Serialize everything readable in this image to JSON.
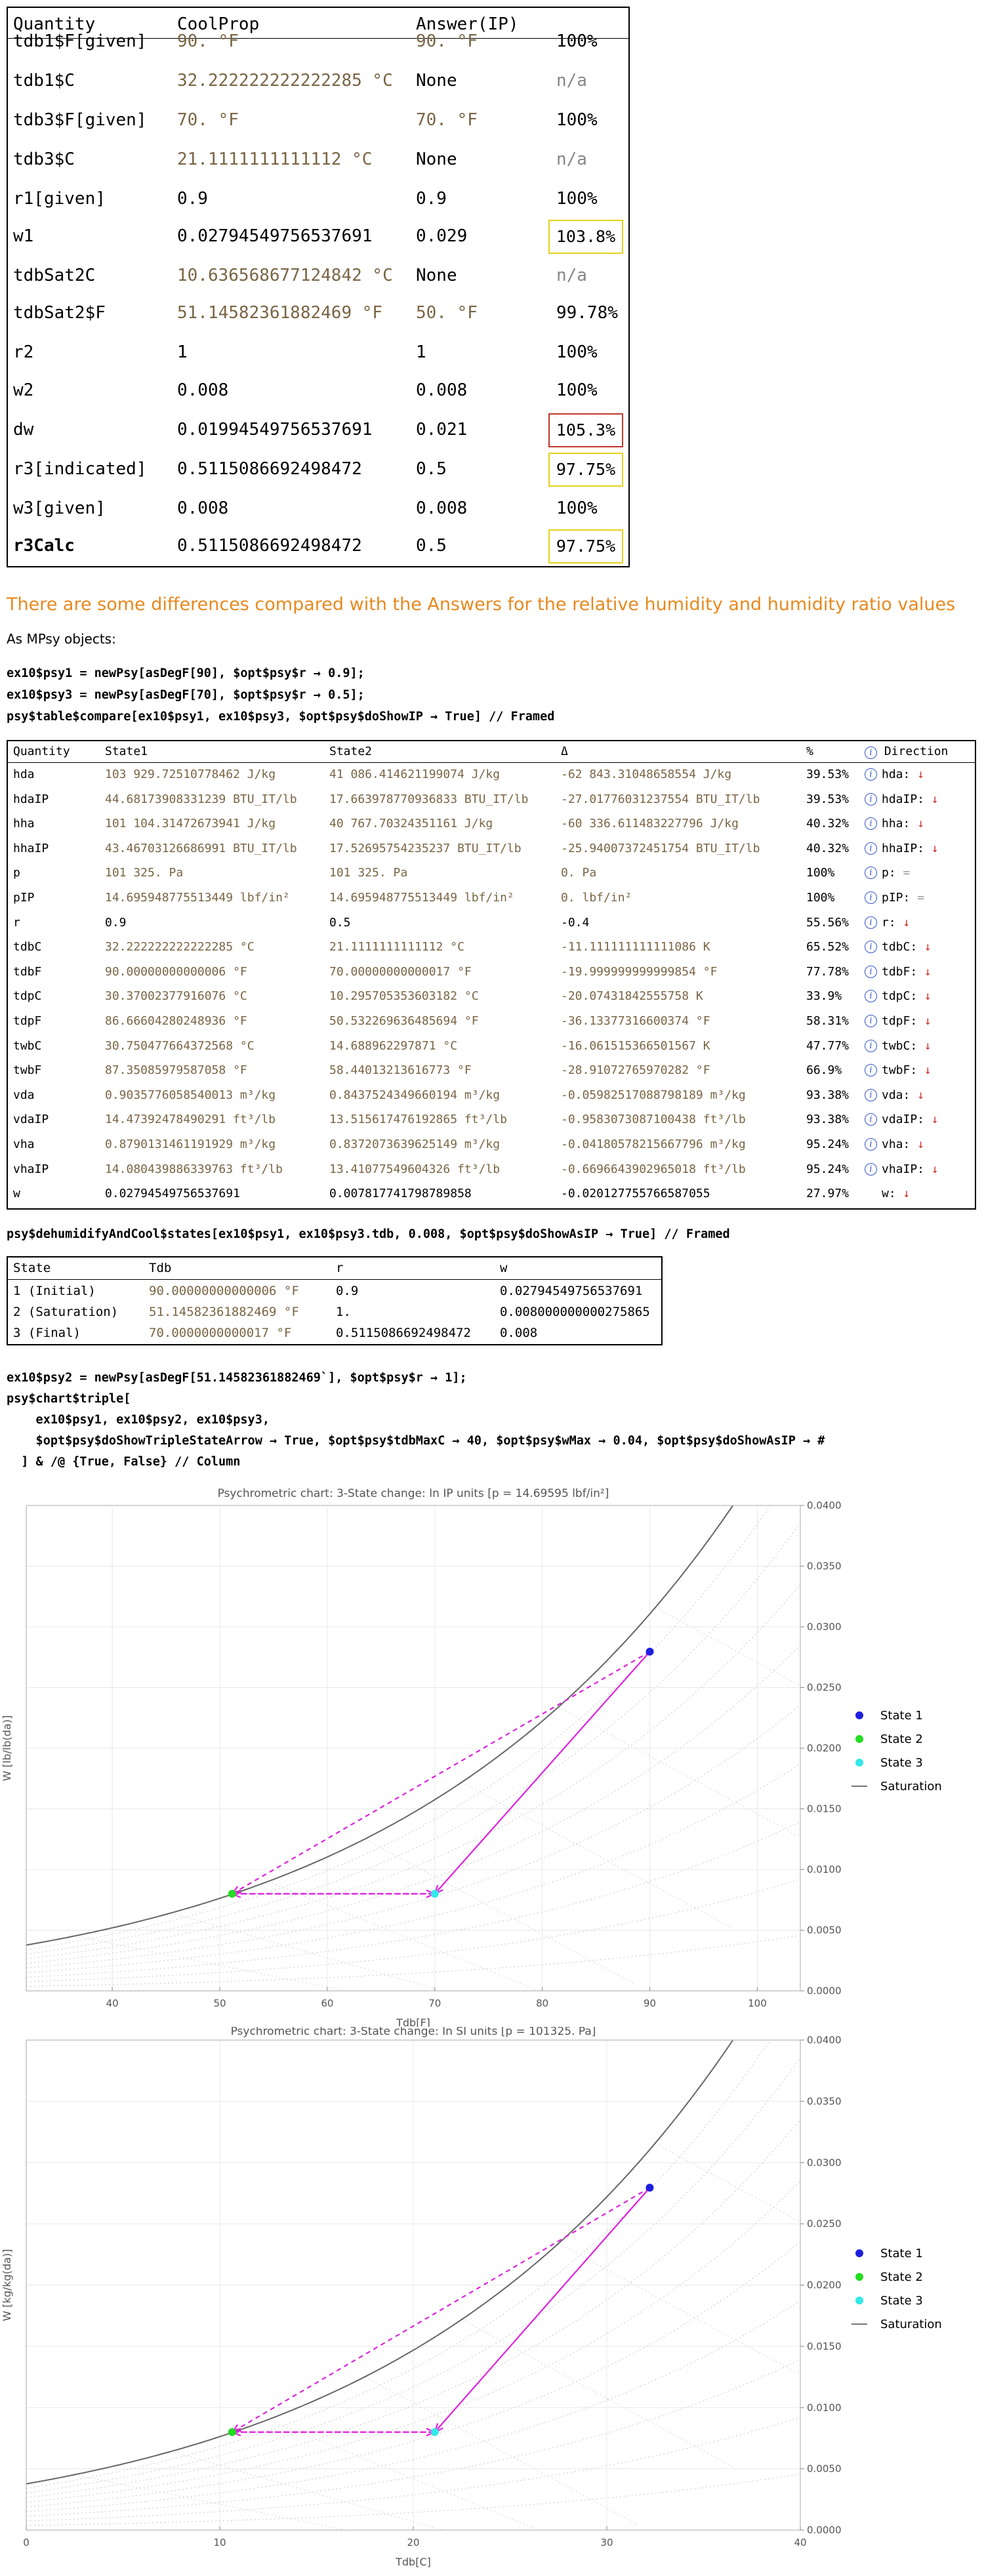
{
  "table1": {
    "headers": [
      "Quantity",
      "CoolProp",
      "Answer(IP)"
    ],
    "rows": [
      {
        "q": "tdb1$F[given]",
        "cp": "90. °F",
        "ans": "90. °F",
        "pct": "100%",
        "cp_style": "brown",
        "ans_style": "brown",
        "box": ""
      },
      {
        "q": "tdb1$C",
        "cp": "32.222222222222285 °C",
        "ans": "None",
        "pct": "n/a",
        "cp_style": "brown",
        "ans_style": "",
        "box": ""
      },
      {
        "q": "tdb3$F[given]",
        "cp": "70. °F",
        "ans": "70. °F",
        "pct": "100%",
        "cp_style": "brown",
        "ans_style": "brown",
        "box": ""
      },
      {
        "q": "tdb3$C",
        "cp": "21.1111111111112 °C",
        "ans": "None",
        "pct": "n/a",
        "cp_style": "brown",
        "ans_style": "",
        "box": ""
      },
      {
        "q": "r1[given]",
        "cp": "0.9",
        "ans": "0.9",
        "pct": "100%",
        "cp_style": "",
        "ans_style": "",
        "box": ""
      },
      {
        "q": "w1",
        "cp": "0.02794549756537691",
        "ans": "0.029",
        "pct": "103.8%",
        "cp_style": "",
        "ans_style": "",
        "box": "yellow"
      },
      {
        "q": "tdbSat2C",
        "cp": "10.636568677124842 °C",
        "ans": "None",
        "pct": "n/a",
        "cp_style": "brown",
        "ans_style": "",
        "box": ""
      },
      {
        "q": "tdbSat2$F",
        "cp": "51.14582361882469 °F",
        "ans": "50. °F",
        "pct": "99.78%",
        "cp_style": "brown",
        "ans_style": "brown",
        "box": ""
      },
      {
        "q": "r2",
        "cp": "1",
        "ans": "1",
        "pct": "100%",
        "cp_style": "",
        "ans_style": "",
        "box": ""
      },
      {
        "q": "w2",
        "cp": "0.008",
        "ans": "0.008",
        "pct": "100%",
        "cp_style": "",
        "ans_style": "",
        "box": ""
      },
      {
        "q": "dw",
        "cp": "0.01994549756537691",
        "ans": "0.021",
        "pct": "105.3%",
        "cp_style": "",
        "ans_style": "",
        "box": "red"
      },
      {
        "q": "r3[indicated]",
        "cp": "0.5115086692498472",
        "ans": "0.5",
        "pct": "97.75%",
        "cp_style": "",
        "ans_style": "",
        "box": "yellow"
      },
      {
        "q": "w3[given]",
        "cp": "0.008",
        "ans": "0.008",
        "pct": "100%",
        "cp_style": "",
        "ans_style": "",
        "box": ""
      },
      {
        "q": "r3Calc",
        "cp": "0.5115086692498472",
        "ans": "0.5",
        "pct": "97.75%",
        "cp_style": "",
        "ans_style": "",
        "box": "yellow",
        "bold": true
      }
    ]
  },
  "heading": "There are some differences compared with the Answers for the relative humidity and humidity ratio values",
  "mpsy_label": "As MPsy objects:",
  "code1": [
    "ex10$psy1 = newPsy[asDegF[90], $opt$psy$r → 0.9];",
    "ex10$psy3 = newPsy[asDegF[70], $opt$psy$r → 0.5];",
    "psy$table$compare[ex10$psy1, ex10$psy3, $opt$psy$doShowIP → True] // Framed"
  ],
  "table2": {
    "headers": [
      "Quantity",
      "State1",
      "State2",
      "Δ",
      "%",
      "Direction"
    ],
    "rows": [
      {
        "q": "hda",
        "s1": "103 929.72510778462 J/kg",
        "s2": "41 086.414621199074 J/kg",
        "d": "-62 843.31048658554 J/kg",
        "p": "39.53%",
        "dir": "hda:",
        "arrow": "↓",
        "ac": "dn",
        "unit": true
      },
      {
        "q": "hdaIP",
        "s1": "44.68173908331239 BTU_IT/lb",
        "s2": "17.663978770936833 BTU_IT/lb",
        "d": "-27.01776031237554 BTU_IT/lb",
        "p": "39.53%",
        "dir": "hdaIP:",
        "arrow": "↓",
        "ac": "dn",
        "unit": true
      },
      {
        "q": "hha",
        "s1": "101 104.31472673941 J/kg",
        "s2": "40 767.70324351161 J/kg",
        "d": "-60 336.611483227796 J/kg",
        "p": "40.32%",
        "dir": "hha:",
        "arrow": "↓",
        "ac": "dn",
        "unit": true
      },
      {
        "q": "hhaIP",
        "s1": "43.46703126686991 BTU_IT/lb",
        "s2": "17.52695754235237 BTU_IT/lb",
        "d": "-25.94007372451754 BTU_IT/lb",
        "p": "40.32%",
        "dir": "hhaIP:",
        "arrow": "↓",
        "ac": "dn",
        "unit": true
      },
      {
        "q": "p",
        "s1": "101 325. Pa",
        "s2": "101 325. Pa",
        "d": "0. Pa",
        "p": "100%",
        "dir": "p:",
        "arrow": "=",
        "ac": "eq",
        "unit": true
      },
      {
        "q": "pIP",
        "s1": "14.695948775513449 lbf/in²",
        "s2": "14.695948775513449 lbf/in²",
        "d": "0. lbf/in²",
        "p": "100%",
        "dir": "pIP:",
        "arrow": "=",
        "ac": "eq",
        "unit": true
      },
      {
        "q": "r",
        "s1": "0.9",
        "s2": "0.5",
        "d": "-0.4",
        "p": "55.56%",
        "dir": "r:",
        "arrow": "↓",
        "ac": "dn",
        "unit": false
      },
      {
        "q": "tdbC",
        "s1": "32.222222222222285 °C",
        "s2": "21.1111111111112 °C",
        "d": "-11.111111111111086 K",
        "p": "65.52%",
        "dir": "tdbC:",
        "arrow": "↓",
        "ac": "dn",
        "unit": true
      },
      {
        "q": "tdbF",
        "s1": "90.00000000000006 °F",
        "s2": "70.00000000000017 °F",
        "d": "-19.999999999999854 °F",
        "p": "77.78%",
        "dir": "tdbF:",
        "arrow": "↓",
        "ac": "dn",
        "unit": true
      },
      {
        "q": "tdpC",
        "s1": "30.37002377916076 °C",
        "s2": "10.295705353603182 °C",
        "d": "-20.07431842555758 K",
        "p": "33.9%",
        "dir": "tdpC:",
        "arrow": "↓",
        "ac": "dn",
        "unit": true
      },
      {
        "q": "tdpF",
        "s1": "86.66604280248936 °F",
        "s2": "50.532269636485694 °F",
        "d": "-36.13377316600374 °F",
        "p": "58.31%",
        "dir": "tdpF:",
        "arrow": "↓",
        "ac": "dn",
        "unit": true
      },
      {
        "q": "twbC",
        "s1": "30.750477664372568 °C",
        "s2": "14.688962297871 °C",
        "d": "-16.061515366501567 K",
        "p": "47.77%",
        "dir": "twbC:",
        "arrow": "↓",
        "ac": "dn",
        "unit": true
      },
      {
        "q": "twbF",
        "s1": "87.35085979587058 °F",
        "s2": "58.44013213616773 °F",
        "d": "-28.91072765970282 °F",
        "p": "66.9%",
        "dir": "twbF:",
        "arrow": "↓",
        "ac": "dn",
        "unit": true
      },
      {
        "q": "vda",
        "s1": "0.9035776058540013 m³/kg",
        "s2": "0.8437524349660194 m³/kg",
        "d": "-0.05982517088798189 m³/kg",
        "p": "93.38%",
        "dir": "vda:",
        "arrow": "↓",
        "ac": "dn",
        "unit": true
      },
      {
        "q": "vdaIP",
        "s1": "14.47392478490291 ft³/lb",
        "s2": "13.515617476192865 ft³/lb",
        "d": "-0.9583073087100438 ft³/lb",
        "p": "93.38%",
        "dir": "vdaIP:",
        "arrow": "↓",
        "ac": "dn",
        "unit": true
      },
      {
        "q": "vha",
        "s1": "0.8790131461191929 m³/kg",
        "s2": "0.8372073639625149 m³/kg",
        "d": "-0.04180578215667796 m³/kg",
        "p": "95.24%",
        "dir": "vha:",
        "arrow": "↓",
        "ac": "dn",
        "unit": true
      },
      {
        "q": "vhaIP",
        "s1": "14.080439886339763 ft³/lb",
        "s2": "13.41077549604326 ft³/lb",
        "d": "-0.6696643902965018 ft³/lb",
        "p": "95.24%",
        "dir": "vhaIP:",
        "arrow": "↓",
        "ac": "dn",
        "unit": true
      },
      {
        "q": "w",
        "s1": "0.02794549756537691",
        "s2": "0.007817741798789858",
        "d": "-0.020127755766587055",
        "p": "27.97%",
        "dir": "w:",
        "arrow": "↓",
        "ac": "dn",
        "unit": false
      }
    ]
  },
  "code2": "psy$dehumidifyAndCool$states[ex10$psy1, ex10$psy3.tdb, 0.008, $opt$psy$doShowAsIP → True] // Framed",
  "table3": {
    "headers": [
      "State",
      "Tdb",
      "r",
      "w"
    ],
    "rows": [
      {
        "s": "1 (Initial)",
        "tdb": "90.00000000000006 °F",
        "r": "0.9",
        "w": "0.02794549756537691"
      },
      {
        "s": "2 (Saturation)",
        "tdb": "51.14582361882469 °F",
        "r": "1.",
        "w": "0.008000000000275865"
      },
      {
        "s": "3 (Final)",
        "tdb": "70.0000000000017 °F",
        "r": "0.5115086692498472",
        "w": "0.008"
      }
    ]
  },
  "code3": [
    "ex10$psy2 = newPsy[asDegF[51.14582361882469`], $opt$psy$r → 1];",
    "psy$chart$triple[",
    "    ex10$psy1, ex10$psy2, ex10$psy3,",
    "    $opt$psy$doShowTripleStateArrow → True, $opt$psy$tdbMaxC → 40, $opt$psy$wMax → 0.04, $opt$psy$doShowAsIP → #",
    "  ] & /@ {True, False} // Column"
  ],
  "chart_data": [
    {
      "type": "line",
      "title": "Psychrometric chart: 3-State change: In IP units [p = 14.69595 lbf/in²]",
      "xlabel": "Tdb[F]",
      "ylabel": "W [lb/lb(da)]",
      "xlim": [
        32,
        104
      ],
      "ylim": [
        0,
        0.04
      ],
      "xticks": [
        40,
        50,
        60,
        70,
        80,
        90,
        100
      ],
      "yticks": [
        "0.0000",
        "0.0050",
        "0.0100",
        "0.0150",
        "0.0200",
        "0.0250",
        "0.0300",
        "0.0350",
        "0.0400"
      ],
      "points": [
        {
          "name": "State 1",
          "x": 90,
          "y": 0.02795
        },
        {
          "name": "State 2",
          "x": 51.15,
          "y": 0.008
        },
        {
          "name": "State 3",
          "x": 70,
          "y": 0.008
        }
      ],
      "legend": [
        "State 1",
        "State 2",
        "State 3",
        "Saturation"
      ],
      "legend_colors": [
        "#1f1fe0",
        "#22dd22",
        "#33e8e8",
        "#777777"
      ],
      "arrow_color": "#e020e0",
      "saturation_color": "#666666"
    },
    {
      "type": "line",
      "title": "Psychrometric chart: 3-State change: In SI units [p = 101325. Pa]",
      "xlabel": "Tdb[C]",
      "ylabel": "W [kg/kg(da)]",
      "xlim": [
        0,
        40
      ],
      "ylim": [
        0,
        0.04
      ],
      "xticks": [
        0,
        10,
        20,
        30,
        40
      ],
      "yticks": [
        "0.0000",
        "0.0050",
        "0.0100",
        "0.0150",
        "0.0200",
        "0.0250",
        "0.0300",
        "0.0350",
        "0.0400"
      ],
      "points": [
        {
          "name": "State 1",
          "x": 32.22,
          "y": 0.02795
        },
        {
          "name": "State 2",
          "x": 10.64,
          "y": 0.008
        },
        {
          "name": "State 3",
          "x": 21.11,
          "y": 0.008
        }
      ],
      "legend": [
        "State 1",
        "State 2",
        "State 3",
        "Saturation"
      ],
      "legend_colors": [
        "#1f1fe0",
        "#22dd22",
        "#33e8e8",
        "#777777"
      ],
      "arrow_color": "#e020e0",
      "saturation_color": "#666666"
    }
  ]
}
